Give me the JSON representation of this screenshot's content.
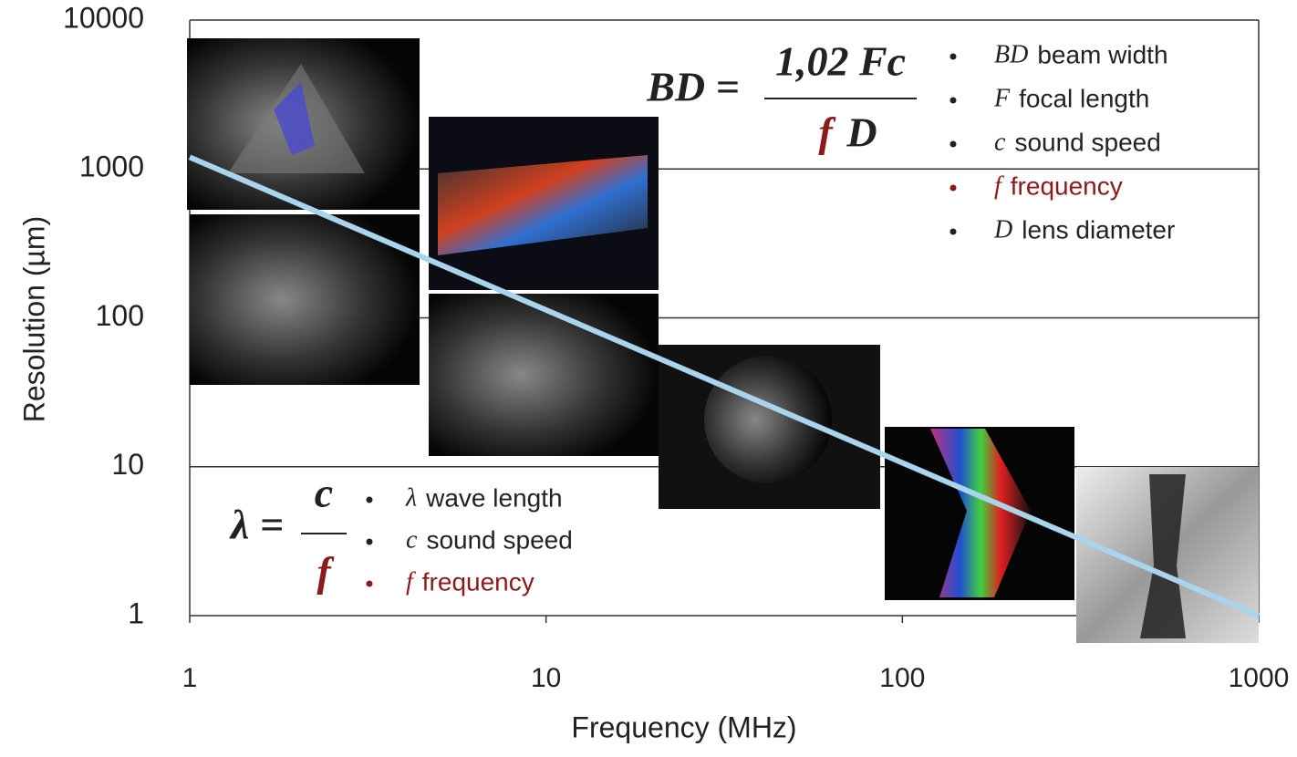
{
  "chart_data": {
    "type": "line",
    "x_label": "Frequency (MHz)",
    "y_label": "Resolution (µm)",
    "x": [
      1,
      1000
    ],
    "series": [
      {
        "color": "#a9d4ec",
        "values": [
          1200,
          1
        ]
      }
    ],
    "xlim": [
      1,
      1000
    ],
    "ylim": [
      1,
      10000
    ],
    "xticks": [
      1,
      10,
      100,
      1000
    ],
    "yticks": [
      1,
      10,
      100,
      1000,
      10000
    ],
    "log_x": true,
    "log_y": true,
    "grid": true,
    "formulas": [
      {
        "lhs": "BD =",
        "numerator": "1,02 Fc",
        "denominator": [
          {
            "text": "f",
            "color": "#8b1a1a"
          },
          {
            "text": "D"
          }
        ],
        "items": [
          {
            "symbol": "BD",
            "text": "beam width"
          },
          {
            "symbol": "F",
            "text": "focal length"
          },
          {
            "symbol": "c",
            "text": "sound speed"
          },
          {
            "symbol": "f",
            "text": "frequency",
            "color": "#8b1a1a"
          },
          {
            "symbol": "D",
            "text": "lens diameter"
          }
        ]
      },
      {
        "lhs": "λ =",
        "numerator": "c",
        "denominator": [
          {
            "text": "f",
            "color": "#8b1a1a"
          }
        ],
        "items": [
          {
            "symbol": "λ",
            "text": "wave length"
          },
          {
            "symbol": "c",
            "text": "sound speed"
          },
          {
            "symbol": "f",
            "text": "frequency",
            "color": "#8b1a1a"
          }
        ]
      }
    ]
  }
}
